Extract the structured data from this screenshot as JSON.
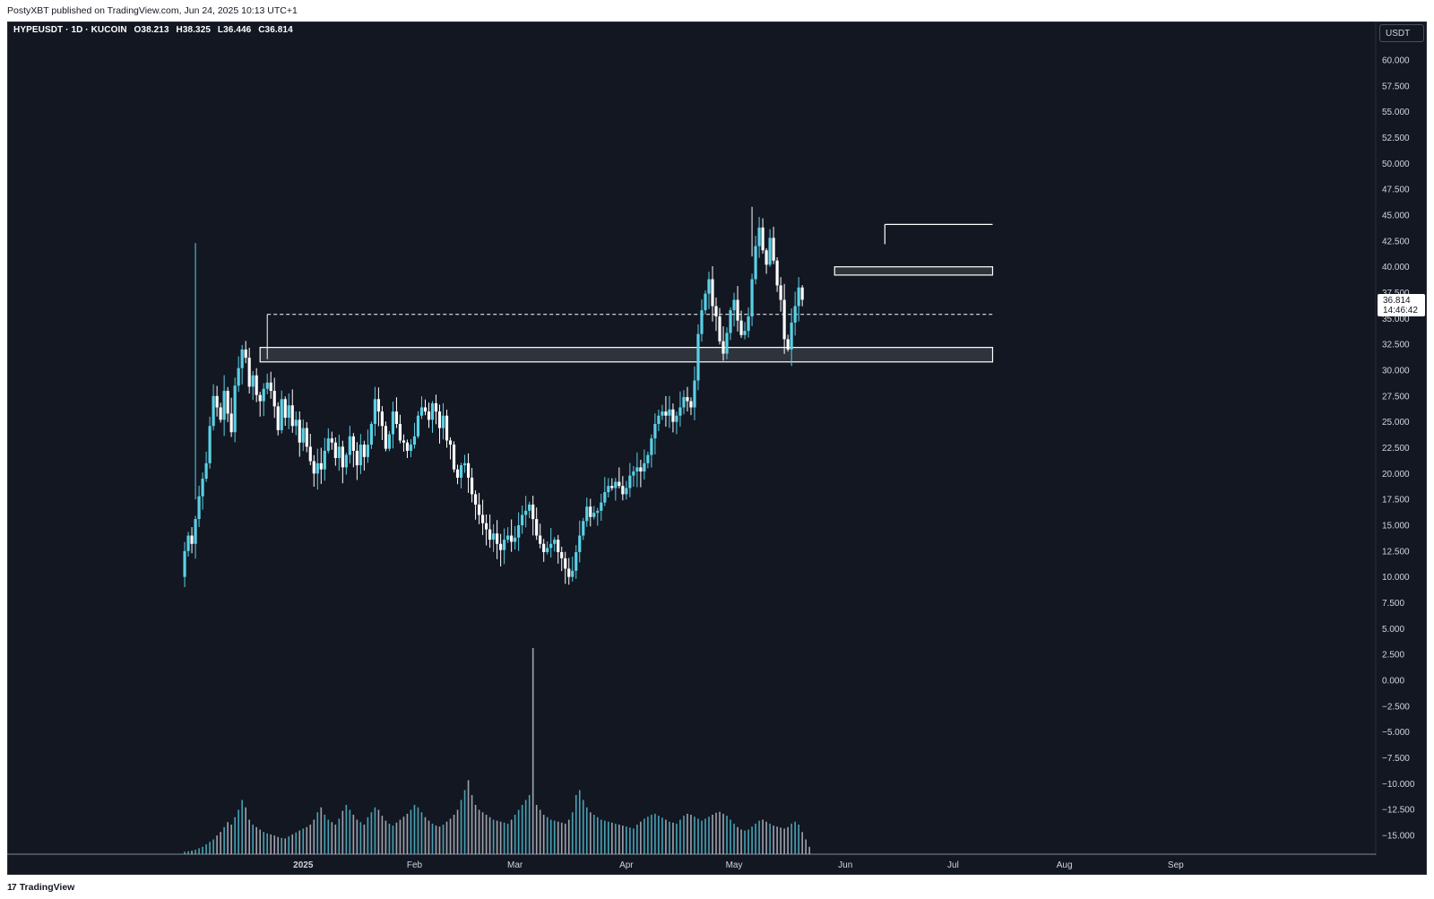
{
  "header": {
    "publisher": "PostyXBT published on TradingView.com, Jun 24, 2025 10:13 UTC+1"
  },
  "legend": {
    "symbol": "HYPEUSDT · 1D · KUCOIN",
    "open": "O38.213",
    "high": "H38.325",
    "low": "L36.446",
    "close": "C36.814"
  },
  "axis": {
    "currency": "USDT"
  },
  "price_tag": {
    "value": "36.814",
    "countdown": "14:46:42"
  },
  "footer": {
    "brand": "TradingView",
    "logo_glyph": "17"
  },
  "colors": {
    "background": "#131722",
    "up": "#5ad1e6",
    "down": "#ffffff",
    "lines": "#ffffff"
  },
  "chart_data": {
    "type": "candlestick",
    "symbol": "HYPEUSDT",
    "interval": "1D",
    "exchange": "KUCOIN",
    "y_ticks": [
      "60.000",
      "57.500",
      "55.000",
      "52.500",
      "50.000",
      "47.500",
      "45.000",
      "42.500",
      "40.000",
      "37.500",
      "35.000",
      "32.500",
      "30.000",
      "27.500",
      "25.000",
      "22.500",
      "20.000",
      "17.500",
      "15.000",
      "12.500",
      "10.000",
      "7.500",
      "5.000",
      "2.500",
      "0.000",
      "−2.500",
      "−5.000",
      "−7.500",
      "−10.000",
      "−12.500",
      "−15.000"
    ],
    "ylim": [
      -15,
      60
    ],
    "x_ticks": [
      {
        "label": "2025",
        "date": "2025-01-01"
      },
      {
        "label": "Feb",
        "date": "2025-02-01"
      },
      {
        "label": "Mar",
        "date": "2025-03-01"
      },
      {
        "label": "Apr",
        "date": "2025-04-01"
      },
      {
        "label": "May",
        "date": "2025-05-01"
      },
      {
        "label": "Jun",
        "date": "2025-06-01"
      },
      {
        "label": "Jul",
        "date": "2025-07-01"
      },
      {
        "label": "Aug",
        "date": "2025-08-01"
      },
      {
        "label": "Sep",
        "date": "2025-09-01"
      }
    ],
    "x_range": [
      "2024-11-20",
      "2025-09-28"
    ],
    "start_date": "2024-11-29",
    "close": [
      12.5,
      14.0,
      13.2,
      15.6,
      17.8,
      19.5,
      21.0,
      24.6,
      27.5,
      26.4,
      25.2,
      28.0,
      25.8,
      24.0,
      28.5,
      30.2,
      32.0,
      31.2,
      28.4,
      29.5,
      27.6,
      27.0,
      28.2,
      28.8,
      28.0,
      26.5,
      24.2,
      27.2,
      25.4,
      26.6,
      24.6,
      25.2,
      23.0,
      24.4,
      22.6,
      21.2,
      20.0,
      21.0,
      20.4,
      22.2,
      23.4,
      23.0,
      21.5,
      22.6,
      20.6,
      21.8,
      23.6,
      22.2,
      20.8,
      22.8,
      21.6,
      22.8,
      24.8,
      27.2,
      26.0,
      24.6,
      22.4,
      23.8,
      26.0,
      24.8,
      23.2,
      23.0,
      22.2,
      22.8,
      23.6,
      25.6,
      26.4,
      26.0,
      25.2,
      26.8,
      26.0,
      24.4,
      25.6,
      23.2,
      22.8,
      20.4,
      19.6,
      20.8,
      21.0,
      19.6,
      18.0,
      17.0,
      16.0,
      15.2,
      14.6,
      13.6,
      14.2,
      13.2,
      12.6,
      13.6,
      14.0,
      13.4,
      13.8,
      15.0,
      16.0,
      16.4,
      17.0,
      15.6,
      14.0,
      13.2,
      12.4,
      12.8,
      13.2,
      13.6,
      12.4,
      11.8,
      10.8,
      10.0,
      10.6,
      12.4,
      14.0,
      15.4,
      16.8,
      15.8,
      16.2,
      16.4,
      17.2,
      18.2,
      18.8,
      18.6,
      19.2,
      18.8,
      18.0,
      18.6,
      19.8,
      20.2,
      20.6,
      20.2,
      21.0,
      21.8,
      23.4,
      24.8,
      25.6,
      26.0,
      25.6,
      26.2,
      25.0,
      25.6,
      26.4,
      27.4,
      27.0,
      26.4,
      29.0,
      33.5,
      35.8,
      37.4,
      38.8,
      36.2,
      35.2,
      32.8,
      31.6,
      33.6,
      35.8,
      36.8,
      34.8,
      33.4,
      33.8,
      35.2,
      38.8,
      42.0,
      43.8,
      41.6,
      40.2,
      42.8,
      40.6,
      38.2,
      36.8,
      33.0,
      32.0,
      34.6,
      36.2,
      38.0,
      36.814
    ],
    "volume_heights": [
      5,
      6,
      7,
      9,
      12,
      15,
      20,
      25,
      30,
      38,
      45,
      55,
      65,
      60,
      75,
      90,
      110,
      95,
      70,
      60,
      55,
      50,
      45,
      42,
      40,
      38,
      35,
      33,
      32,
      36,
      40,
      44,
      48,
      52,
      55,
      60,
      70,
      85,
      95,
      80,
      70,
      65,
      60,
      72,
      88,
      100,
      90,
      80,
      70,
      65,
      60,
      75,
      85,
      95,
      90,
      78,
      68,
      62,
      58,
      64,
      70,
      76,
      82,
      90,
      100,
      95,
      85,
      75,
      68,
      62,
      58,
      56,
      60,
      66,
      72,
      80,
      90,
      110,
      130,
      150,
      120,
      100,
      90,
      85,
      80,
      75,
      70,
      68,
      66,
      64,
      62,
      70,
      80,
      90,
      100,
      110,
      120,
      230,
      100,
      90,
      80,
      75,
      70,
      68,
      66,
      64,
      62,
      70,
      85,
      120,
      130,
      110,
      95,
      85,
      80,
      75,
      70,
      68,
      66,
      64,
      62,
      60,
      58,
      56,
      54,
      52,
      60,
      66,
      72,
      76,
      80,
      82,
      78,
      74,
      70,
      66,
      64,
      62,
      70,
      78,
      82,
      80,
      76,
      72,
      68,
      72,
      76,
      80,
      84,
      86,
      82,
      78,
      70,
      62,
      55,
      50,
      48,
      50,
      56,
      62,
      68,
      70,
      66,
      62,
      58,
      56,
      54,
      52,
      55,
      62,
      66,
      60,
      45,
      30,
      15
    ],
    "volume_spike_index": 97,
    "zones": [
      {
        "kind": "box",
        "top": 32.2,
        "bottom": 30.8,
        "from": "2024-12-20",
        "to": "2025-07-12"
      },
      {
        "kind": "box",
        "top": 40.0,
        "bottom": 39.2,
        "from": "2025-05-29",
        "to": "2025-07-12"
      },
      {
        "kind": "hline",
        "value": 44.1,
        "from": "2025-06-12",
        "to": "2025-07-12"
      },
      {
        "kind": "dashed",
        "value": 35.4,
        "from": "2024-12-22",
        "to": "2025-07-12"
      }
    ]
  }
}
